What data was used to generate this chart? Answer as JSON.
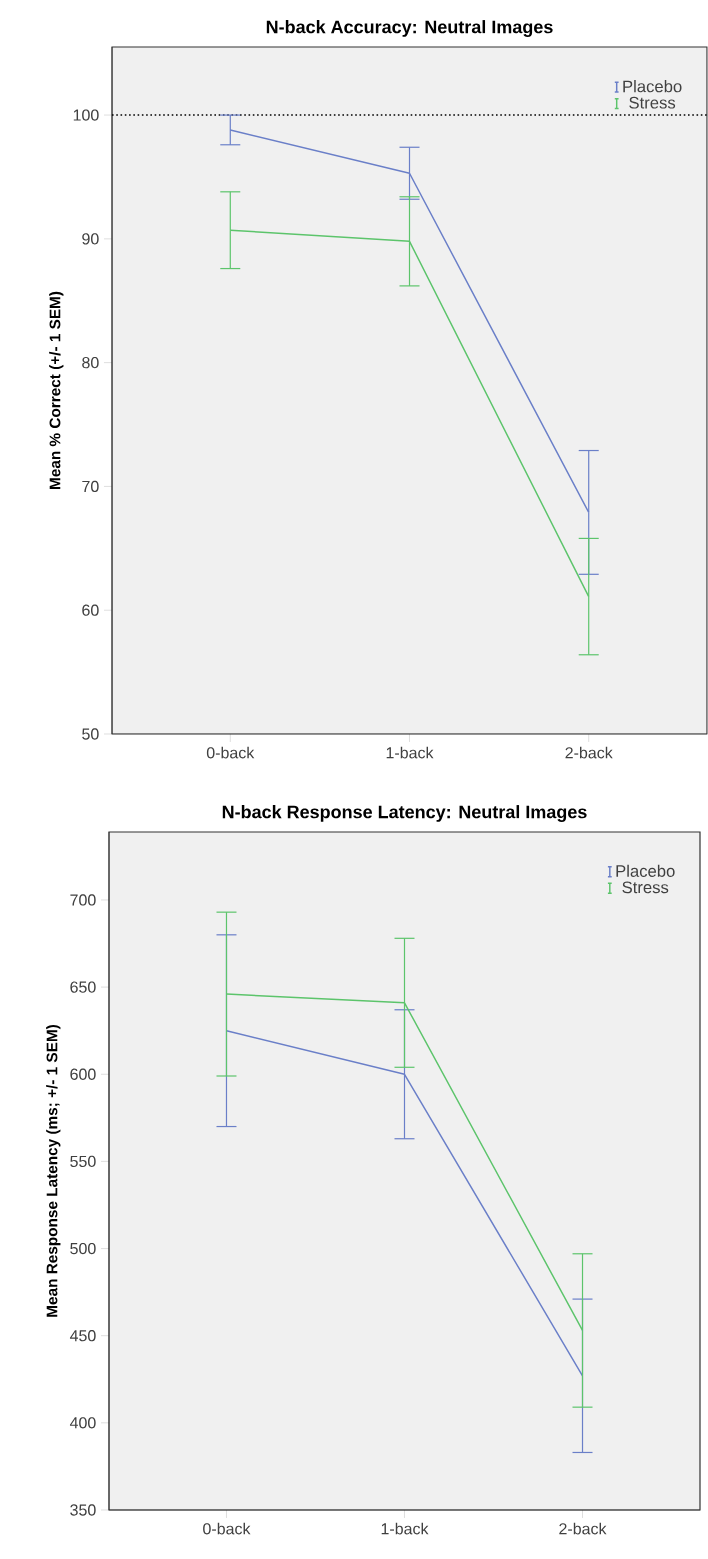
{
  "chart_data": [
    {
      "type": "line",
      "title": "N-back Accuracy:  Neutral Images",
      "ylabel": "Mean % Correct (+/- 1 SEM)",
      "categories": [
        "0-back",
        "1-back",
        "2-back"
      ],
      "ylim": [
        50,
        105.5
      ],
      "yticks": [
        50,
        60,
        70,
        80,
        90,
        100
      ],
      "legend": "top right",
      "ref_lines": [
        {
          "axis": "y",
          "value": 100,
          "line_style": "dotted",
          "color": "#000000"
        }
      ],
      "series": [
        {
          "name": "Placebo",
          "color": "#6a7fc8",
          "values": [
            98.8,
            95.3,
            67.9
          ],
          "errors": [
            1.2,
            2.1,
            5.0
          ]
        },
        {
          "name": "Stress",
          "color": "#5cc46b",
          "values": [
            90.7,
            89.8,
            61.1
          ],
          "errors": [
            3.1,
            3.6,
            4.7
          ]
        }
      ]
    },
    {
      "type": "line",
      "title": "N-back Response Latency:  Neutral Images",
      "ylabel": "Mean Response Latency (ms; +/- 1 SEM)",
      "categories": [
        "0-back",
        "1-back",
        "2-back"
      ],
      "ylim": [
        350,
        739
      ],
      "yticks": [
        350,
        400,
        450,
        500,
        550,
        600,
        650,
        700
      ],
      "legend": "top right",
      "series": [
        {
          "name": "Placebo",
          "color": "#6a7fc8",
          "values": [
            625,
            600,
            427
          ],
          "errors": [
            55,
            37,
            44
          ]
        },
        {
          "name": "Stress",
          "color": "#5cc46b",
          "values": [
            646,
            641,
            453
          ],
          "errors": [
            47,
            37,
            44
          ]
        }
      ]
    }
  ]
}
